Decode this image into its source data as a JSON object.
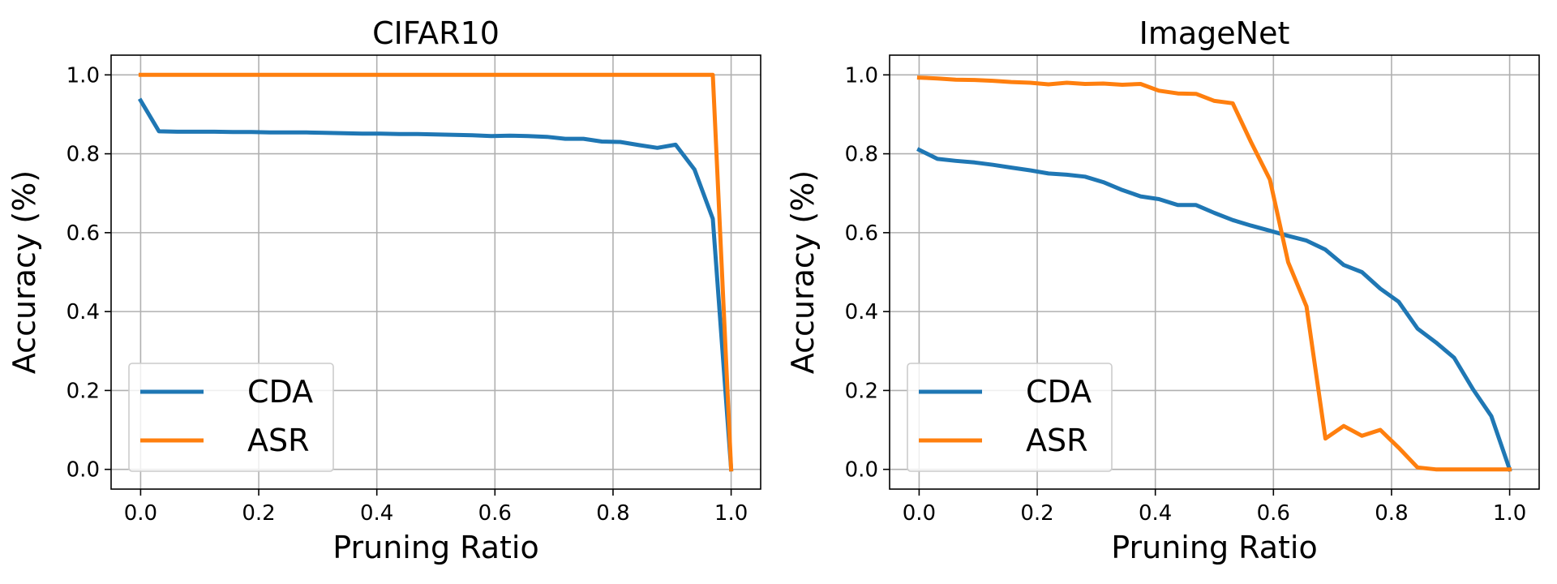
{
  "chart_data": [
    {
      "type": "line",
      "title": "CIFAR10",
      "xlabel": "Pruning Ratio",
      "ylabel": "Accuracy (%)",
      "xlim": [
        -0.05,
        1.05
      ],
      "ylim": [
        -0.05,
        1.05
      ],
      "xticks": [
        "0.0",
        "0.2",
        "0.4",
        "0.6",
        "0.8",
        "1.0"
      ],
      "yticks": [
        "0.0",
        "0.2",
        "0.4",
        "0.6",
        "0.8",
        "1.0"
      ],
      "grid": true,
      "legend_position": "lower-left",
      "series": [
        {
          "name": "CDA",
          "color": "#1f77b4",
          "x": [
            0.0,
            0.031,
            0.062,
            0.094,
            0.125,
            0.156,
            0.188,
            0.219,
            0.25,
            0.281,
            0.312,
            0.344,
            0.375,
            0.406,
            0.438,
            0.469,
            0.5,
            0.531,
            0.562,
            0.594,
            0.625,
            0.656,
            0.688,
            0.719,
            0.75,
            0.781,
            0.812,
            0.844,
            0.875,
            0.906,
            0.938,
            0.969,
            1.0
          ],
          "y": [
            0.935,
            0.857,
            0.856,
            0.856,
            0.856,
            0.855,
            0.855,
            0.854,
            0.854,
            0.854,
            0.853,
            0.852,
            0.851,
            0.851,
            0.85,
            0.85,
            0.849,
            0.848,
            0.847,
            0.845,
            0.846,
            0.845,
            0.843,
            0.838,
            0.838,
            0.831,
            0.83,
            0.822,
            0.815,
            0.823,
            0.76,
            0.635,
            0.0
          ]
        },
        {
          "name": "ASR",
          "color": "#ff7f0e",
          "x": [
            0.0,
            0.1,
            0.2,
            0.3,
            0.4,
            0.5,
            0.6,
            0.7,
            0.8,
            0.9,
            0.969,
            1.0
          ],
          "y": [
            1.0,
            1.0,
            1.0,
            1.0,
            1.0,
            1.0,
            1.0,
            1.0,
            1.0,
            1.0,
            1.0,
            0.0
          ]
        }
      ]
    },
    {
      "type": "line",
      "title": "ImageNet",
      "xlabel": "Pruning Ratio",
      "ylabel": "Accuracy (%)",
      "xlim": [
        -0.05,
        1.05
      ],
      "ylim": [
        -0.05,
        1.05
      ],
      "xticks": [
        "0.0",
        "0.2",
        "0.4",
        "0.6",
        "0.8",
        "1.0"
      ],
      "yticks": [
        "0.0",
        "0.2",
        "0.4",
        "0.6",
        "0.8",
        "1.0"
      ],
      "grid": true,
      "legend_position": "lower-left",
      "series": [
        {
          "name": "CDA",
          "color": "#1f77b4",
          "x": [
            0.0,
            0.031,
            0.062,
            0.094,
            0.125,
            0.156,
            0.188,
            0.219,
            0.25,
            0.281,
            0.312,
            0.344,
            0.375,
            0.406,
            0.438,
            0.469,
            0.5,
            0.531,
            0.562,
            0.594,
            0.625,
            0.656,
            0.688,
            0.719,
            0.75,
            0.781,
            0.812,
            0.844,
            0.875,
            0.906,
            0.938,
            0.969,
            1.0
          ],
          "y": [
            0.81,
            0.787,
            0.782,
            0.778,
            0.772,
            0.765,
            0.758,
            0.75,
            0.747,
            0.742,
            0.728,
            0.708,
            0.692,
            0.685,
            0.67,
            0.67,
            0.65,
            0.632,
            0.618,
            0.605,
            0.592,
            0.58,
            0.557,
            0.518,
            0.5,
            0.458,
            0.425,
            0.357,
            0.322,
            0.283,
            0.203,
            0.135,
            0.0
          ]
        },
        {
          "name": "ASR",
          "color": "#ff7f0e",
          "x": [
            0.0,
            0.031,
            0.062,
            0.094,
            0.125,
            0.156,
            0.188,
            0.219,
            0.25,
            0.281,
            0.312,
            0.344,
            0.375,
            0.406,
            0.438,
            0.469,
            0.5,
            0.531,
            0.562,
            0.594,
            0.625,
            0.656,
            0.688,
            0.719,
            0.75,
            0.781,
            0.812,
            0.844,
            0.875,
            0.906,
            0.938,
            0.969,
            1.0
          ],
          "y": [
            0.993,
            0.991,
            0.988,
            0.987,
            0.985,
            0.982,
            0.98,
            0.976,
            0.98,
            0.977,
            0.978,
            0.975,
            0.977,
            0.96,
            0.953,
            0.952,
            0.934,
            0.928,
            0.83,
            0.735,
            0.525,
            0.413,
            0.078,
            0.11,
            0.085,
            0.1,
            0.055,
            0.005,
            0.0,
            0.0,
            0.0,
            0.0,
            0.0
          ]
        }
      ]
    }
  ]
}
